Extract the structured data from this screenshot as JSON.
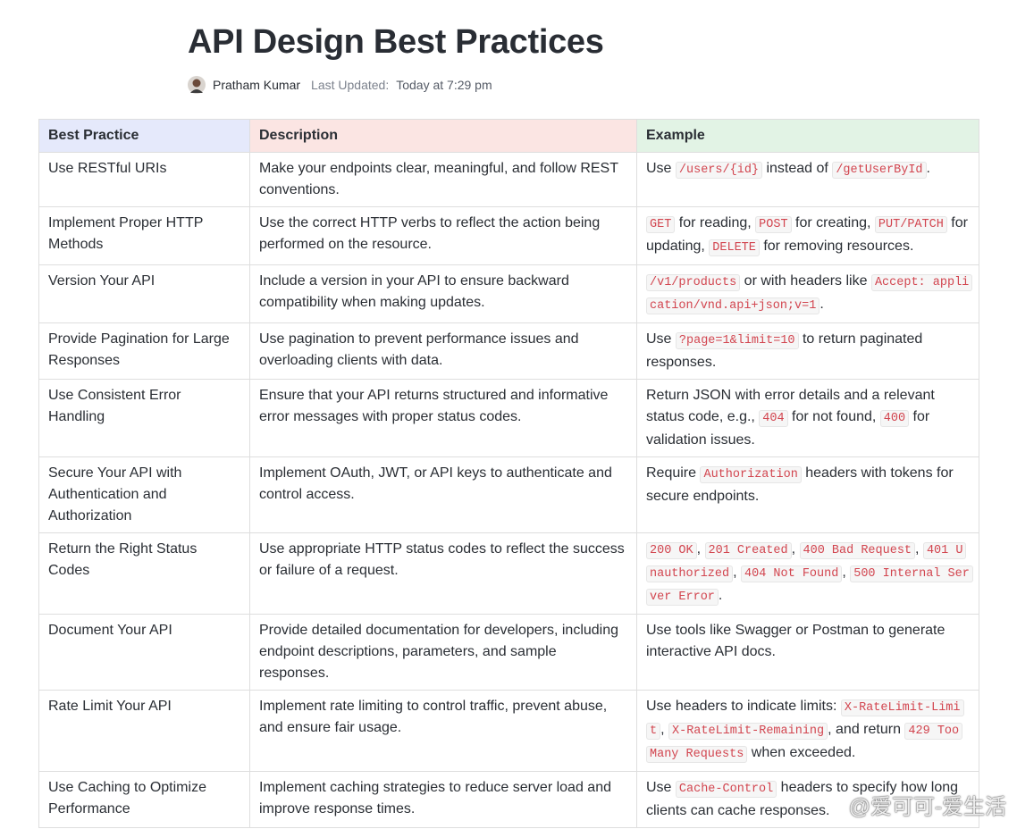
{
  "header": {
    "title": "API Design Best Practices",
    "author": "Pratham Kumar",
    "updated_label": "Last Updated:",
    "updated_value": "Today at 7:29 pm"
  },
  "table": {
    "columns": [
      "Best Practice",
      "Description",
      "Example"
    ],
    "rows": [
      [
        "Use RESTful URIs",
        "Make your endpoints clear, meaningful, and follow REST conventions.",
        [
          {
            "text": "Use "
          },
          {
            "code": "/users/{id}"
          },
          {
            "text": " instead of "
          },
          {
            "code": "/getUserById"
          },
          {
            "text": "."
          }
        ]
      ],
      [
        "Implement Proper HTTP Methods",
        "Use the correct HTTP verbs to reflect the action being performed on the resource.",
        [
          {
            "code": "GET"
          },
          {
            "text": " for reading, "
          },
          {
            "code": "POST"
          },
          {
            "text": " for creating, "
          },
          {
            "code": "PUT/PATCH"
          },
          {
            "text": " for updating, "
          },
          {
            "code": "DELETE"
          },
          {
            "text": " for removing resources."
          }
        ]
      ],
      [
        "Version Your API",
        "Include a version in your API to ensure backward compatibility when making updates.",
        [
          {
            "code": "/v1/products"
          },
          {
            "text": " or with headers like "
          },
          {
            "code": "Accept: application/vnd.api+json;v=1"
          },
          {
            "text": "."
          }
        ]
      ],
      [
        "Provide Pagination for Large Responses",
        "Use pagination to prevent performance issues and overloading clients with data.",
        [
          {
            "text": "Use "
          },
          {
            "code": "?page=1&limit=10"
          },
          {
            "text": " to return paginated responses."
          }
        ]
      ],
      [
        "Use Consistent Error Handling",
        "Ensure that your API returns structured and informative error messages with proper status codes.",
        [
          {
            "text": "Return JSON with error details and a relevant status code, e.g., "
          },
          {
            "code": "404"
          },
          {
            "text": " for not found, "
          },
          {
            "code": "400"
          },
          {
            "text": " for validation issues."
          }
        ]
      ],
      [
        "Secure Your API with Authentication and Authorization",
        "Implement OAuth, JWT, or API keys to authenticate and control access.",
        [
          {
            "text": "Require "
          },
          {
            "code": "Authorization"
          },
          {
            "text": " headers with tokens for secure endpoints."
          }
        ]
      ],
      [
        "Return the Right Status Codes",
        "Use appropriate HTTP status codes to reflect the success or failure of a request.",
        [
          {
            "code": "200 OK"
          },
          {
            "text": ", "
          },
          {
            "code": "201 Created"
          },
          {
            "text": ", "
          },
          {
            "code": "400 Bad Request"
          },
          {
            "text": ", "
          },
          {
            "code": "401 Unauthorized"
          },
          {
            "text": ", "
          },
          {
            "code": "404 Not Found"
          },
          {
            "text": ", "
          },
          {
            "code": "500 Internal Server Error"
          },
          {
            "text": "."
          }
        ]
      ],
      [
        "Document Your API",
        "Provide detailed documentation for developers, including endpoint descriptions, parameters, and sample responses.",
        [
          {
            "text": "Use tools like Swagger or Postman to generate interactive API docs."
          }
        ]
      ],
      [
        "Rate Limit Your API",
        "Implement rate limiting to control traffic, prevent abuse, and ensure fair usage.",
        [
          {
            "text": "Use headers to indicate limits: "
          },
          {
            "code": "X-RateLimit-Limit"
          },
          {
            "text": ", "
          },
          {
            "code": "X-RateLimit-Remaining"
          },
          {
            "text": ", and return "
          },
          {
            "code": "429 Too Many Requests"
          },
          {
            "text": " when exceeded."
          }
        ]
      ],
      [
        "Use Caching to Optimize Performance",
        "Implement caching strategies to reduce server load and improve response times.",
        [
          {
            "text": "Use "
          },
          {
            "code": "Cache-Control"
          },
          {
            "text": " headers to specify how long clients can cache responses."
          }
        ]
      ]
    ]
  },
  "watermark": "@爱可可-爱生活"
}
